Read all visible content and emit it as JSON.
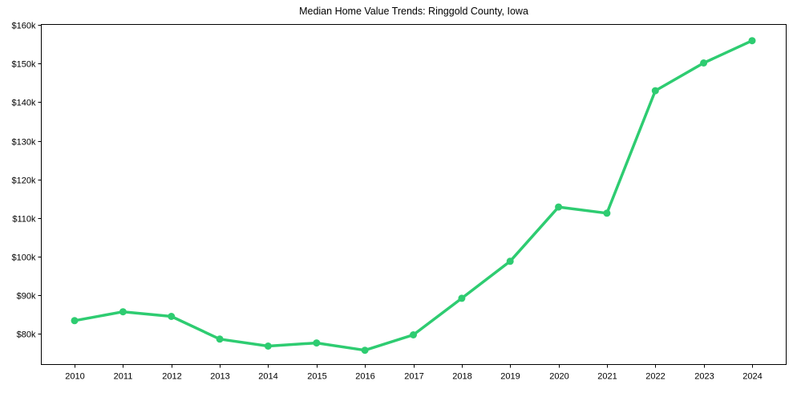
{
  "chart_data": {
    "type": "line",
    "title": "Median Home Value Trends: Ringgold County, Iowa",
    "xlabel": "",
    "ylabel": "",
    "categories": [
      "2010",
      "2011",
      "2012",
      "2013",
      "2014",
      "2015",
      "2016",
      "2017",
      "2018",
      "2019",
      "2020",
      "2021",
      "2022",
      "2023",
      "2024"
    ],
    "series": [
      {
        "name": "Median Home Value",
        "color": "#2ecc71",
        "values": [
          83300,
          85600,
          84400,
          78500,
          76700,
          77500,
          75600,
          79600,
          89100,
          98700,
          112800,
          111200,
          143000,
          150200,
          156000
        ]
      }
    ],
    "yticks": [
      80000,
      90000,
      100000,
      110000,
      120000,
      130000,
      140000,
      150000,
      160000
    ],
    "ytick_labels": [
      "$80k",
      "$90k",
      "$100k",
      "$110k",
      "$120k",
      "$130k",
      "$140k",
      "$150k",
      "$160k"
    ],
    "ylim": [
      71900,
      160200
    ],
    "grid": false,
    "legend": null,
    "markers": true
  }
}
